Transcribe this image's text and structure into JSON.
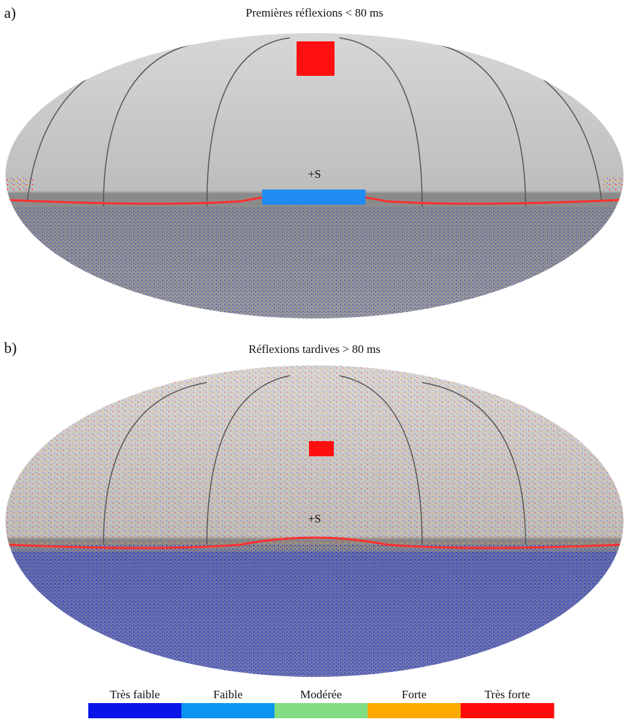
{
  "panels": [
    {
      "label": "a)",
      "title": "Premières réflexions < 80 ms",
      "source_label": "+S"
    },
    {
      "label": "b)",
      "title": "Réflexions tardives > 80 ms",
      "source_label": "+S"
    }
  ],
  "legend": {
    "items": [
      {
        "label": "Très faible",
        "color": "#0a14e6"
      },
      {
        "label": "Faible",
        "color": "#0a96f0"
      },
      {
        "label": "Modérée",
        "color": "#82dc82"
      },
      {
        "label": "Forte",
        "color": "#ffaa00"
      },
      {
        "label": "Très forte",
        "color": "#ff0a0a"
      }
    ]
  }
}
